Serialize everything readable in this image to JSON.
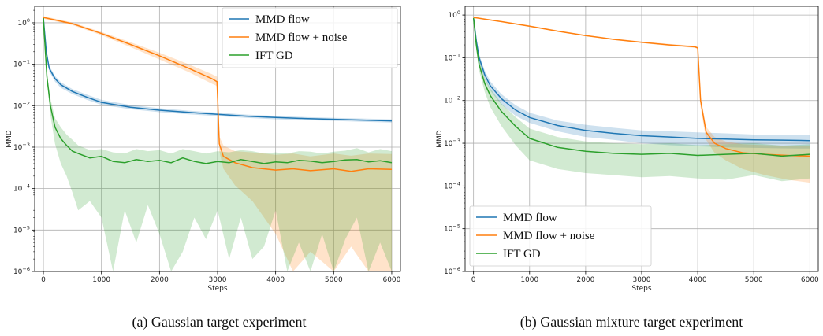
{
  "chart_data": [
    {
      "type": "line",
      "caption": "(a) Gaussian target experiment",
      "xlabel": "Steps",
      "ylabel": "MMD",
      "xlim": [
        -150,
        6150
      ],
      "ylim": [
        1e-06,
        2.5
      ],
      "yscale": "log",
      "grid": true,
      "legend_position": "top-right",
      "xticks": [
        0,
        1000,
        2000,
        3000,
        4000,
        5000,
        6000
      ],
      "xtick_labels": [
        "0",
        "1000",
        "2000",
        "3000",
        "4000",
        "5000",
        "6000"
      ],
      "yticks": [
        1e-06,
        1e-05,
        0.0001,
        0.001,
        0.01,
        0.1,
        1
      ],
      "ytick_labels": [
        "10",
        "10",
        "10",
        "10",
        "10",
        "10",
        "10"
      ],
      "ytick_exps": [
        "−6",
        "−5",
        "−4",
        "−3",
        "−2",
        "−1",
        "0"
      ],
      "series": [
        {
          "name": "MMD flow",
          "color": "#1f77b4",
          "x": [
            0,
            50,
            100,
            200,
            300,
            500,
            750,
            1000,
            1500,
            2000,
            2500,
            3000,
            3500,
            4000,
            4500,
            5000,
            5500,
            6000
          ],
          "y": [
            1.3,
            0.2,
            0.08,
            0.045,
            0.032,
            0.022,
            0.016,
            0.012,
            0.0092,
            0.0078,
            0.0069,
            0.0062,
            0.0056,
            0.0052,
            0.0049,
            0.0047,
            0.0045,
            0.0043
          ],
          "band_lower": [
            1.2,
            0.17,
            0.068,
            0.038,
            0.027,
            0.019,
            0.0138,
            0.0105,
            0.0082,
            0.007,
            0.0062,
            0.0056,
            0.0051,
            0.0047,
            0.0045,
            0.0043,
            0.0041,
            0.0039
          ],
          "band_upper": [
            1.4,
            0.23,
            0.092,
            0.052,
            0.037,
            0.025,
            0.0185,
            0.0138,
            0.0104,
            0.0087,
            0.0076,
            0.0068,
            0.0061,
            0.0057,
            0.0053,
            0.0051,
            0.0049,
            0.0047
          ]
        },
        {
          "name": "MMD flow + noise",
          "color": "#ff7f0e",
          "x": [
            0,
            500,
            1000,
            1500,
            2000,
            2500,
            2900,
            2990,
            3030,
            3100,
            3300,
            3600,
            4000,
            4300,
            4600,
            5000,
            5300,
            5600,
            6000
          ],
          "y": [
            1.35,
            0.95,
            0.55,
            0.3,
            0.16,
            0.08,
            0.045,
            0.038,
            0.0012,
            0.0006,
            0.00042,
            0.00032,
            0.00028,
            0.0003,
            0.00027,
            0.0003,
            0.00026,
            0.0003,
            0.00029
          ],
          "band_lower": [
            1.25,
            0.88,
            0.5,
            0.26,
            0.13,
            0.065,
            0.034,
            0.03,
            0.0008,
            0.0003,
            0.00012,
            5e-05,
            8e-06,
            1e-06,
            3e-06,
            1e-06,
            4e-06,
            1e-06,
            1e-06
          ],
          "band_upper": [
            1.45,
            1.02,
            0.6,
            0.34,
            0.19,
            0.1,
            0.058,
            0.05,
            0.0018,
            0.0011,
            0.0008,
            0.00075,
            0.00065,
            0.0007,
            0.0006,
            0.0007,
            0.00062,
            0.0007,
            0.00068
          ]
        },
        {
          "name": "IFT GD",
          "color": "#2ca02c",
          "x": [
            0,
            60,
            120,
            200,
            300,
            400,
            500,
            600,
            800,
            1000,
            1200,
            1400,
            1600,
            1800,
            2000,
            2200,
            2400,
            2600,
            2800,
            3000,
            3200,
            3400,
            3600,
            3800,
            4000,
            4200,
            4400,
            4600,
            4800,
            5000,
            5200,
            5400,
            5600,
            5800,
            6000
          ],
          "y": [
            1.3,
            0.05,
            0.01,
            0.003,
            0.0016,
            0.0011,
            0.0008,
            0.0007,
            0.00055,
            0.0006,
            0.00045,
            0.00042,
            0.0005,
            0.00045,
            0.00048,
            0.00042,
            0.00055,
            0.00045,
            0.0004,
            0.00045,
            0.00042,
            0.0005,
            0.00045,
            0.0004,
            0.00044,
            0.00042,
            0.00048,
            0.00046,
            0.00042,
            0.00045,
            0.00049,
            0.0005,
            0.00044,
            0.00047,
            0.00042
          ],
          "band_lower": [
            1.2,
            0.04,
            0.006,
            0.0012,
            0.0004,
            0.0002,
            8e-05,
            3e-05,
            5e-05,
            2e-05,
            1e-06,
            3e-05,
            5e-06,
            4e-05,
            8e-06,
            1e-06,
            3e-06,
            2e-05,
            6e-06,
            3e-05,
            2e-06,
            2e-05,
            2e-06,
            4e-06,
            3e-05,
            1e-06,
            5e-06,
            1e-06,
            8e-06,
            1e-06,
            6e-06,
            2e-05,
            1e-06,
            5e-06,
            1e-06
          ],
          "band_upper": [
            1.4,
            0.06,
            0.015,
            0.005,
            0.003,
            0.002,
            0.0015,
            0.0011,
            0.00085,
            0.0009,
            0.00075,
            0.0007,
            0.0009,
            0.0008,
            0.00085,
            0.0007,
            0.0009,
            0.0008,
            0.0007,
            0.0008,
            0.00075,
            0.00085,
            0.0008,
            0.0007,
            0.00075,
            0.0007,
            0.0008,
            0.00078,
            0.0007,
            0.00078,
            0.00082,
            0.00095,
            0.00075,
            0.0009,
            0.0008
          ]
        }
      ]
    },
    {
      "type": "line",
      "caption": "(b) Gaussian mixture target experiment",
      "xlabel": "Steps",
      "ylabel": "MMD",
      "xlim": [
        -150,
        6150
      ],
      "ylim": [
        1e-06,
        1.6
      ],
      "yscale": "log",
      "grid": true,
      "legend_position": "bottom-left",
      "xticks": [
        0,
        1000,
        2000,
        3000,
        4000,
        5000,
        6000
      ],
      "xtick_labels": [
        "0",
        "1000",
        "2000",
        "3000",
        "4000",
        "5000",
        "6000"
      ],
      "yticks": [
        1e-06,
        1e-05,
        0.0001,
        0.001,
        0.01,
        0.1,
        1
      ],
      "ytick_labels": [
        "10",
        "10",
        "10",
        "10",
        "10",
        "10",
        "10"
      ],
      "ytick_exps": [
        "−6",
        "−5",
        "−4",
        "−3",
        "−2",
        "−1",
        "0"
      ],
      "series": [
        {
          "name": "MMD flow",
          "color": "#1f77b4",
          "x": [
            0,
            50,
            100,
            200,
            300,
            500,
            750,
            1000,
            1500,
            2000,
            2500,
            3000,
            3500,
            4000,
            4500,
            5000,
            5500,
            6000
          ],
          "y": [
            0.85,
            0.25,
            0.1,
            0.04,
            0.022,
            0.011,
            0.006,
            0.004,
            0.0026,
            0.002,
            0.0017,
            0.0015,
            0.0014,
            0.0013,
            0.00125,
            0.0012,
            0.00118,
            0.00115
          ],
          "band_lower": [
            0.8,
            0.2,
            0.08,
            0.032,
            0.017,
            0.008,
            0.0044,
            0.003,
            0.0019,
            0.0014,
            0.0012,
            0.001,
            0.0009,
            0.00085,
            0.0008,
            0.00078,
            0.00076,
            0.00075
          ],
          "band_upper": [
            0.9,
            0.3,
            0.12,
            0.05,
            0.028,
            0.014,
            0.0078,
            0.0052,
            0.0034,
            0.0027,
            0.0023,
            0.002,
            0.0019,
            0.0018,
            0.0017,
            0.0016,
            0.0016,
            0.0016
          ]
        },
        {
          "name": "MMD flow + noise",
          "color": "#ff7f0e",
          "x": [
            0,
            500,
            1000,
            1500,
            2000,
            2500,
            3000,
            3500,
            3950,
            4000,
            4050,
            4150,
            4300,
            4500,
            4800,
            5200,
            5600,
            6000
          ],
          "y": [
            0.88,
            0.7,
            0.55,
            0.42,
            0.33,
            0.27,
            0.23,
            0.2,
            0.18,
            0.17,
            0.01,
            0.0018,
            0.001,
            0.00075,
            0.0006,
            0.00055,
            0.00052,
            0.0005
          ],
          "band_lower": [
            0.85,
            0.68,
            0.53,
            0.41,
            0.32,
            0.26,
            0.22,
            0.19,
            0.17,
            0.16,
            0.007,
            0.0012,
            0.0006,
            0.0004,
            0.00025,
            0.00018,
            0.00014,
            0.00012
          ],
          "band_upper": [
            0.91,
            0.72,
            0.57,
            0.44,
            0.34,
            0.28,
            0.24,
            0.21,
            0.19,
            0.18,
            0.013,
            0.0024,
            0.0014,
            0.0011,
            0.00095,
            0.0009,
            0.00088,
            0.00085
          ]
        },
        {
          "name": "IFT GD",
          "color": "#2ca02c",
          "x": [
            0,
            50,
            100,
            200,
            300,
            500,
            750,
            1000,
            1500,
            2000,
            2500,
            3000,
            3500,
            4000,
            4500,
            5000,
            5500,
            6000
          ],
          "y": [
            0.85,
            0.2,
            0.07,
            0.025,
            0.013,
            0.0055,
            0.0025,
            0.0013,
            0.0008,
            0.00065,
            0.00058,
            0.00055,
            0.00058,
            0.00052,
            0.00055,
            0.00058,
            0.0005,
            0.00055
          ],
          "band_lower": [
            0.8,
            0.15,
            0.05,
            0.016,
            0.007,
            0.0025,
            0.0009,
            0.0004,
            0.00025,
            0.0002,
            0.00018,
            0.00016,
            0.00017,
            0.00015,
            0.00014,
            0.00018,
            0.00013,
            0.00015
          ],
          "band_upper": [
            0.9,
            0.25,
            0.09,
            0.034,
            0.019,
            0.0085,
            0.0041,
            0.0022,
            0.0014,
            0.0011,
            0.001,
            0.00095,
            0.001,
            0.0009,
            0.00095,
            0.001,
            0.00088,
            0.00095
          ]
        }
      ]
    }
  ]
}
